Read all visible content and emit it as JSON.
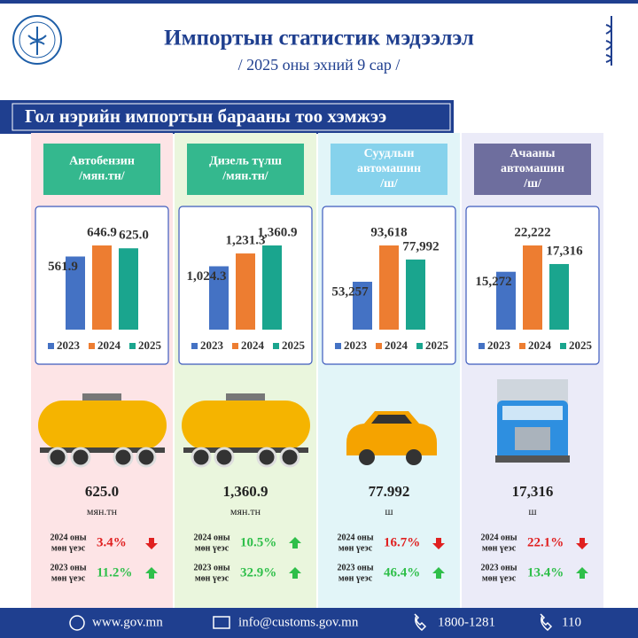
{
  "header": {
    "title": "Импортын статистик мэдээлэл",
    "subtitle": "/ 2025 оны эхний 9 сар /"
  },
  "section_title": "Гол нэрийн импортын барааны тоо хэмжээ",
  "chart_data": [
    {
      "type": "bar",
      "categories": [
        "2023",
        "2024",
        "2025"
      ],
      "values": [
        561.9,
        646.9,
        625.0
      ],
      "value_labels": [
        "561.9",
        "646.9",
        "625.0"
      ],
      "colors": [
        "#4472c4",
        "#ed7d31",
        "#1aa58e"
      ]
    },
    {
      "type": "bar",
      "categories": [
        "2023",
        "2024",
        "2025"
      ],
      "values": [
        1024.3,
        1231.3,
        1360.9
      ],
      "value_labels": [
        "1,024.3",
        "1,231.3",
        "1,360.9"
      ],
      "colors": [
        "#4472c4",
        "#ed7d31",
        "#1aa58e"
      ]
    },
    {
      "type": "bar",
      "categories": [
        "2023",
        "2024",
        "2025"
      ],
      "values": [
        53257,
        93618,
        77992
      ],
      "value_labels": [
        "53,257",
        "93,618",
        "77,992"
      ],
      "colors": [
        "#4472c4",
        "#ed7d31",
        "#1aa58e"
      ]
    },
    {
      "type": "bar",
      "categories": [
        "2023",
        "2024",
        "2025"
      ],
      "values": [
        15272,
        22222,
        17316
      ],
      "value_labels": [
        "15,272",
        "22,222",
        "17,316"
      ],
      "colors": [
        "#4472c4",
        "#ed7d31",
        "#1aa58e"
      ]
    }
  ],
  "panels": [
    {
      "title_lines": [
        "Автобензин",
        "/мян.тн/"
      ],
      "total": "625.0",
      "unit": "мян.тн",
      "comparisons": [
        {
          "label_lines": [
            "2024 оны",
            "мөн үеэс"
          ],
          "change": "3.4%",
          "trend": "down"
        },
        {
          "label_lines": [
            "2023 оны",
            "мөн үеэс"
          ],
          "change": "11.2%",
          "trend": "up"
        }
      ]
    },
    {
      "title_lines": [
        "Дизель түлш",
        "/мян.тн/"
      ],
      "total": "1,360.9",
      "unit": "мян.тн",
      "comparisons": [
        {
          "label_lines": [
            "2024 оны",
            "мөн үеэс"
          ],
          "change": "10.5%",
          "trend": "up"
        },
        {
          "label_lines": [
            "2023 оны",
            "мөн үеэс"
          ],
          "change": "32.9%",
          "trend": "up"
        }
      ]
    },
    {
      "title_lines": [
        "Суудлын",
        "автомашин",
        "/ш/"
      ],
      "total": "77.992",
      "unit": "ш",
      "comparisons": [
        {
          "label_lines": [
            "2024 оны",
            "мөн үеэс"
          ],
          "change": "16.7%",
          "trend": "down"
        },
        {
          "label_lines": [
            "2023 оны",
            "мөн үеэс"
          ],
          "change": "46.4%",
          "trend": "up"
        }
      ]
    },
    {
      "title_lines": [
        "Ачааны",
        "автомашин",
        "/ш/"
      ],
      "total": "17,316",
      "unit": "ш",
      "comparisons": [
        {
          "label_lines": [
            "2024 оны",
            "мөн үеэс"
          ],
          "change": "22.1%",
          "trend": "down"
        },
        {
          "label_lines": [
            "2023 оны",
            "мөн үеэс"
          ],
          "change": "13.4%",
          "trend": "up"
        }
      ]
    }
  ],
  "footer": {
    "website": "www.gov.mn",
    "email": "info@customs.gov.mn",
    "phone": "1800-1281",
    "hotline": "110"
  }
}
